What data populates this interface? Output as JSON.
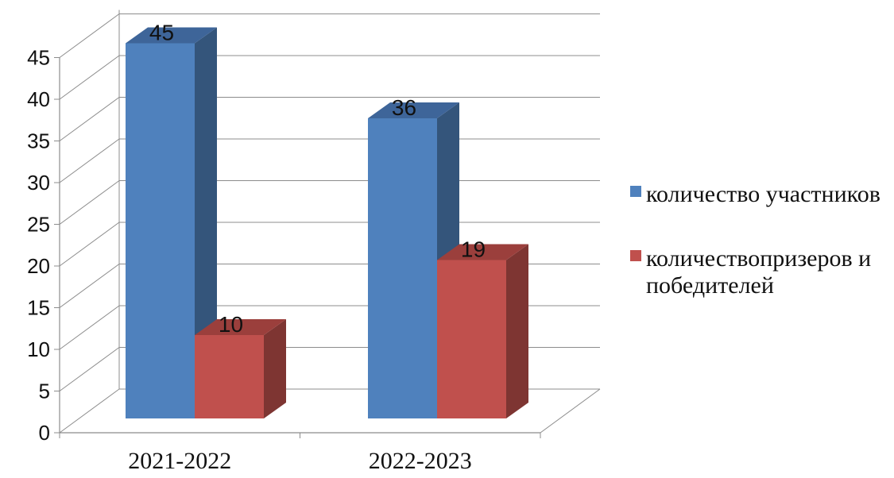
{
  "chart_data": {
    "type": "bar",
    "categories": [
      "2021-2022",
      "2022-2023"
    ],
    "series": [
      {
        "name": "количество участников",
        "values": [
          45,
          36
        ],
        "color": "#4F81BD",
        "side_color": "#34557B",
        "top_color": "#3E6599"
      },
      {
        "name": "количествопризеров и победителей",
        "legend_lines": [
          "количествопризеров и",
          "победителей"
        ],
        "values": [
          10,
          19
        ],
        "color": "#C0504D",
        "side_color": "#7E3532",
        "top_color": "#9B3F3C"
      }
    ],
    "ylim": [
      0,
      45
    ],
    "y_ticks": [
      0,
      5,
      10,
      15,
      20,
      25,
      30,
      35,
      40,
      45
    ],
    "grid": true,
    "three_d": true,
    "legend_position": "right",
    "data_labels": true
  }
}
